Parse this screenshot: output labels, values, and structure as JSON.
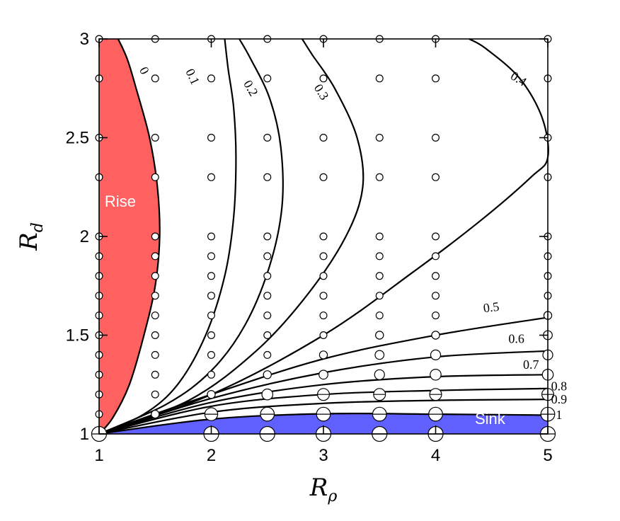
{
  "chart_data": {
    "type": "contour",
    "title": "",
    "xlabel": "R",
    "xlabel_sub": "ρ",
    "ylabel": "R",
    "ylabel_sub": "d",
    "xlim": [
      1,
      5
    ],
    "ylim": [
      1,
      3
    ],
    "xticks": [
      "1",
      "2",
      "3",
      "4",
      "5"
    ],
    "yticks": [
      "1",
      "1.5",
      "2",
      "2.5",
      "3"
    ],
    "grid": false,
    "legend": "none",
    "regions": [
      {
        "name": "Rise",
        "color": "#ff6060",
        "boundary": [
          [
            1.0,
            1.0
          ],
          [
            1.12,
            1.08
          ],
          [
            1.27,
            1.25
          ],
          [
            1.4,
            1.5
          ],
          [
            1.5,
            1.75
          ],
          [
            1.54,
            2.0
          ],
          [
            1.52,
            2.25
          ],
          [
            1.45,
            2.5
          ],
          [
            1.33,
            2.75
          ],
          [
            1.25,
            2.9
          ],
          [
            1.17,
            3.0
          ]
        ]
      },
      {
        "name": "Sink",
        "color": "#6060ff",
        "boundary": [
          [
            1.0,
            1.0
          ],
          [
            1.5,
            1.045
          ],
          [
            2.0,
            1.075
          ],
          [
            2.5,
            1.093
          ],
          [
            3.0,
            1.102
          ],
          [
            3.5,
            1.105
          ],
          [
            4.0,
            1.1
          ],
          [
            4.5,
            1.097
          ],
          [
            5.0,
            1.095
          ]
        ]
      }
    ],
    "contours": [
      {
        "level": "0",
        "points": [
          [
            1.0,
            1.0
          ],
          [
            1.12,
            1.08
          ],
          [
            1.27,
            1.25
          ],
          [
            1.4,
            1.5
          ],
          [
            1.5,
            1.75
          ],
          [
            1.54,
            2.0
          ],
          [
            1.52,
            2.25
          ],
          [
            1.45,
            2.5
          ],
          [
            1.33,
            2.75
          ],
          [
            1.25,
            2.9
          ],
          [
            1.17,
            3.0
          ]
        ]
      },
      {
        "level": "0.1",
        "points": [
          [
            1.0,
            1.0
          ],
          [
            1.4,
            1.1
          ],
          [
            1.7,
            1.25
          ],
          [
            1.95,
            1.5
          ],
          [
            2.12,
            1.8
          ],
          [
            2.2,
            2.1
          ],
          [
            2.22,
            2.4
          ],
          [
            2.2,
            2.65
          ],
          [
            2.15,
            2.85
          ],
          [
            2.12,
            3.0
          ]
        ]
      },
      {
        "level": "0.2",
        "points": [
          [
            1.0,
            1.0
          ],
          [
            1.6,
            1.15
          ],
          [
            2.0,
            1.32
          ],
          [
            2.3,
            1.55
          ],
          [
            2.52,
            1.85
          ],
          [
            2.63,
            2.15
          ],
          [
            2.62,
            2.45
          ],
          [
            2.52,
            2.7
          ],
          [
            2.35,
            2.9
          ],
          [
            2.25,
            3.0
          ]
        ]
      },
      {
        "level": "0.3",
        "points": [
          [
            1.0,
            1.0
          ],
          [
            1.8,
            1.17
          ],
          [
            2.4,
            1.42
          ],
          [
            2.85,
            1.7
          ],
          [
            3.2,
            2.0
          ],
          [
            3.35,
            2.25
          ],
          [
            3.3,
            2.5
          ],
          [
            3.1,
            2.75
          ],
          [
            2.9,
            2.92
          ],
          [
            2.81,
            3.0
          ]
        ]
      },
      {
        "level": "0.4",
        "points": [
          [
            1.0,
            1.0
          ],
          [
            2.0,
            1.2
          ],
          [
            3.0,
            1.5
          ],
          [
            3.8,
            1.82
          ],
          [
            4.4,
            2.08
          ],
          [
            4.85,
            2.3
          ],
          [
            5.0,
            2.4
          ],
          [
            4.95,
            2.6
          ],
          [
            4.75,
            2.8
          ],
          [
            4.45,
            2.95
          ],
          [
            4.3,
            3.0
          ]
        ]
      },
      {
        "level": "0.5",
        "points": [
          [
            1.0,
            1.0
          ],
          [
            2.0,
            1.2
          ],
          [
            3.0,
            1.38
          ],
          [
            4.0,
            1.5
          ],
          [
            5.0,
            1.59
          ]
        ]
      },
      {
        "level": "0.6",
        "points": [
          [
            1.0,
            1.0
          ],
          [
            2.0,
            1.18
          ],
          [
            3.0,
            1.31
          ],
          [
            4.0,
            1.39
          ],
          [
            5.0,
            1.42
          ]
        ]
      },
      {
        "level": "0.7",
        "points": [
          [
            1.0,
            1.0
          ],
          [
            2.0,
            1.16
          ],
          [
            3.0,
            1.25
          ],
          [
            4.0,
            1.29
          ],
          [
            5.0,
            1.3
          ]
        ]
      },
      {
        "level": "0.8",
        "points": [
          [
            1.0,
            1.0
          ],
          [
            2.0,
            1.14
          ],
          [
            3.0,
            1.2
          ],
          [
            4.0,
            1.22
          ],
          [
            5.0,
            1.23
          ]
        ]
      },
      {
        "level": "0.9",
        "points": [
          [
            1.0,
            1.0
          ],
          [
            2.0,
            1.11
          ],
          [
            3.0,
            1.155
          ],
          [
            4.0,
            1.17
          ],
          [
            5.0,
            1.175
          ]
        ]
      },
      {
        "level": "1",
        "points": [
          [
            1.0,
            1.0
          ],
          [
            2.0,
            1.075
          ],
          [
            3.0,
            1.102
          ],
          [
            4.0,
            1.1
          ],
          [
            5.0,
            1.095
          ]
        ]
      }
    ],
    "contour_labels": [
      {
        "text": "0",
        "x": 1.37,
        "y": 2.83,
        "rotation": 63
      },
      {
        "text": "0.1",
        "x": 1.8,
        "y": 2.8,
        "rotation": 65
      },
      {
        "text": "0.2",
        "x": 2.32,
        "y": 2.74,
        "rotation": 60
      },
      {
        "text": "0.3",
        "x": 2.95,
        "y": 2.72,
        "rotation": 58
      },
      {
        "text": "0.4",
        "x": 4.72,
        "y": 2.78,
        "rotation": 32
      },
      {
        "text": "0.5",
        "x": 4.5,
        "y": 1.62,
        "rotation": -7
      },
      {
        "text": "0.6",
        "x": 4.72,
        "y": 1.46,
        "rotation": 0
      },
      {
        "text": "0.7",
        "x": 4.85,
        "y": 1.33,
        "rotation": 0
      },
      {
        "text": "0.8",
        "x": 5.1,
        "y": 1.22,
        "rotation": 0
      },
      {
        "text": "0.9",
        "x": 5.1,
        "y": 1.155,
        "rotation": 0
      },
      {
        "text": "1",
        "x": 5.1,
        "y": 1.075,
        "rotation": 0
      }
    ],
    "region_labels": [
      {
        "text": "Rise",
        "x": 1.05,
        "y": 2.15
      },
      {
        "text": "Sink",
        "x": 4.35,
        "y": 1.05
      }
    ],
    "points": [
      {
        "x": 1,
        "y": 3,
        "s": 0.2
      },
      {
        "x": 1,
        "y": 2.8,
        "s": 0.2
      },
      {
        "x": 1,
        "y": 2.5,
        "s": 0.2
      },
      {
        "x": 1,
        "y": 2.3,
        "s": 0.2
      },
      {
        "x": 1,
        "y": 2.0,
        "s": 0.2
      },
      {
        "x": 1,
        "y": 1.9,
        "s": 0.2
      },
      {
        "x": 1,
        "y": 1.8,
        "s": 0.2
      },
      {
        "x": 1,
        "y": 1.7,
        "s": 0.2
      },
      {
        "x": 1,
        "y": 1.6,
        "s": 0.2
      },
      {
        "x": 1,
        "y": 1.5,
        "s": 0.2
      },
      {
        "x": 1,
        "y": 1.4,
        "s": 0.2
      },
      {
        "x": 1,
        "y": 1.3,
        "s": 0.2
      },
      {
        "x": 1,
        "y": 1.2,
        "s": 0.2
      },
      {
        "x": 1,
        "y": 1.1,
        "s": 0.2
      },
      {
        "x": 1,
        "y": 1.0,
        "s": 1.0
      },
      {
        "x": 1.5,
        "y": 3,
        "s": 0.2
      },
      {
        "x": 1.5,
        "y": 2.8,
        "s": 0.2
      },
      {
        "x": 1.5,
        "y": 2.5,
        "s": 0.2
      },
      {
        "x": 1.5,
        "y": 2.3,
        "s": 0.2
      },
      {
        "x": 1.5,
        "y": 2.0,
        "s": 0.2
      },
      {
        "x": 1.5,
        "y": 1.9,
        "s": 0.2
      },
      {
        "x": 1.5,
        "y": 1.8,
        "s": 0.2
      },
      {
        "x": 1.5,
        "y": 1.7,
        "s": 0.2
      },
      {
        "x": 1.5,
        "y": 1.6,
        "s": 0.2
      },
      {
        "x": 1.5,
        "y": 1.5,
        "s": 0.2
      },
      {
        "x": 1.5,
        "y": 1.4,
        "s": 0.2
      },
      {
        "x": 1.5,
        "y": 1.3,
        "s": 0.2
      },
      {
        "x": 1.5,
        "y": 1.2,
        "s": 0.2
      },
      {
        "x": 1.5,
        "y": 1.1,
        "s": 0.3
      },
      {
        "x": 2,
        "y": 3,
        "s": 0.2
      },
      {
        "x": 2,
        "y": 2.8,
        "s": 0.2
      },
      {
        "x": 2,
        "y": 2.5,
        "s": 0.2
      },
      {
        "x": 2,
        "y": 2.3,
        "s": 0.2
      },
      {
        "x": 2,
        "y": 2.0,
        "s": 0.2
      },
      {
        "x": 2,
        "y": 1.9,
        "s": 0.2
      },
      {
        "x": 2,
        "y": 1.8,
        "s": 0.2
      },
      {
        "x": 2,
        "y": 1.7,
        "s": 0.2
      },
      {
        "x": 2,
        "y": 1.6,
        "s": 0.2
      },
      {
        "x": 2,
        "y": 1.5,
        "s": 0.2
      },
      {
        "x": 2,
        "y": 1.4,
        "s": 0.2
      },
      {
        "x": 2,
        "y": 1.3,
        "s": 0.2
      },
      {
        "x": 2,
        "y": 1.2,
        "s": 0.3
      },
      {
        "x": 2,
        "y": 1.1,
        "s": 0.8
      },
      {
        "x": 2,
        "y": 1.0,
        "s": 1.0
      },
      {
        "x": 2.5,
        "y": 3,
        "s": 0.2
      },
      {
        "x": 2.5,
        "y": 2.8,
        "s": 0.2
      },
      {
        "x": 2.5,
        "y": 2.5,
        "s": 0.2
      },
      {
        "x": 2.5,
        "y": 2.3,
        "s": 0.2
      },
      {
        "x": 2.5,
        "y": 2.0,
        "s": 0.2
      },
      {
        "x": 2.5,
        "y": 1.9,
        "s": 0.2
      },
      {
        "x": 2.5,
        "y": 1.8,
        "s": 0.2
      },
      {
        "x": 2.5,
        "y": 1.7,
        "s": 0.2
      },
      {
        "x": 2.5,
        "y": 1.6,
        "s": 0.2
      },
      {
        "x": 2.5,
        "y": 1.5,
        "s": 0.2
      },
      {
        "x": 2.5,
        "y": 1.4,
        "s": 0.2
      },
      {
        "x": 2.5,
        "y": 1.3,
        "s": 0.3
      },
      {
        "x": 2.5,
        "y": 1.2,
        "s": 0.6
      },
      {
        "x": 2.5,
        "y": 1.1,
        "s": 0.9
      },
      {
        "x": 2.5,
        "y": 1.0,
        "s": 1.0
      },
      {
        "x": 3,
        "y": 3,
        "s": 0.2
      },
      {
        "x": 3,
        "y": 2.8,
        "s": 0.2
      },
      {
        "x": 3,
        "y": 2.5,
        "s": 0.2
      },
      {
        "x": 3,
        "y": 2.3,
        "s": 0.2
      },
      {
        "x": 3,
        "y": 2.0,
        "s": 0.2
      },
      {
        "x": 3,
        "y": 1.9,
        "s": 0.2
      },
      {
        "x": 3,
        "y": 1.8,
        "s": 0.2
      },
      {
        "x": 3,
        "y": 1.7,
        "s": 0.2
      },
      {
        "x": 3,
        "y": 1.6,
        "s": 0.2
      },
      {
        "x": 3,
        "y": 1.5,
        "s": 0.2
      },
      {
        "x": 3,
        "y": 1.4,
        "s": 0.3
      },
      {
        "x": 3,
        "y": 1.3,
        "s": 0.4
      },
      {
        "x": 3,
        "y": 1.2,
        "s": 0.7
      },
      {
        "x": 3,
        "y": 1.1,
        "s": 0.9
      },
      {
        "x": 3,
        "y": 1.0,
        "s": 1.0
      },
      {
        "x": 3.5,
        "y": 3,
        "s": 0.2
      },
      {
        "x": 3.5,
        "y": 2.8,
        "s": 0.2
      },
      {
        "x": 3.5,
        "y": 2.5,
        "s": 0.2
      },
      {
        "x": 3.5,
        "y": 2.3,
        "s": 0.2
      },
      {
        "x": 3.5,
        "y": 2.0,
        "s": 0.2
      },
      {
        "x": 3.5,
        "y": 1.9,
        "s": 0.2
      },
      {
        "x": 3.5,
        "y": 1.8,
        "s": 0.2
      },
      {
        "x": 3.5,
        "y": 1.7,
        "s": 0.2
      },
      {
        "x": 3.5,
        "y": 1.6,
        "s": 0.2
      },
      {
        "x": 3.5,
        "y": 1.5,
        "s": 0.3
      },
      {
        "x": 3.5,
        "y": 1.4,
        "s": 0.4
      },
      {
        "x": 3.5,
        "y": 1.3,
        "s": 0.5
      },
      {
        "x": 3.5,
        "y": 1.2,
        "s": 0.7
      },
      {
        "x": 3.5,
        "y": 1.1,
        "s": 0.9
      },
      {
        "x": 3.5,
        "y": 1.0,
        "s": 1.0
      },
      {
        "x": 4,
        "y": 3,
        "s": 0.2
      },
      {
        "x": 4,
        "y": 2.8,
        "s": 0.2
      },
      {
        "x": 4,
        "y": 2.5,
        "s": 0.2
      },
      {
        "x": 4,
        "y": 2.3,
        "s": 0.2
      },
      {
        "x": 4,
        "y": 2.0,
        "s": 0.2
      },
      {
        "x": 4,
        "y": 1.9,
        "s": 0.2
      },
      {
        "x": 4,
        "y": 1.8,
        "s": 0.2
      },
      {
        "x": 4,
        "y": 1.7,
        "s": 0.2
      },
      {
        "x": 4,
        "y": 1.6,
        "s": 0.2
      },
      {
        "x": 4,
        "y": 1.5,
        "s": 0.3
      },
      {
        "x": 4,
        "y": 1.4,
        "s": 0.5
      },
      {
        "x": 4,
        "y": 1.3,
        "s": 0.6
      },
      {
        "x": 4,
        "y": 1.2,
        "s": 0.7
      },
      {
        "x": 4,
        "y": 1.1,
        "s": 0.9
      },
      {
        "x": 4,
        "y": 1.0,
        "s": 1.0
      },
      {
        "x": 5,
        "y": 3,
        "s": 0.2
      },
      {
        "x": 5,
        "y": 2.8,
        "s": 0.2
      },
      {
        "x": 5,
        "y": 2.5,
        "s": 0.2
      },
      {
        "x": 5,
        "y": 2.3,
        "s": 0.2
      },
      {
        "x": 5,
        "y": 2.0,
        "s": 0.2
      },
      {
        "x": 5,
        "y": 1.9,
        "s": 0.2
      },
      {
        "x": 5,
        "y": 1.8,
        "s": 0.2
      },
      {
        "x": 5,
        "y": 1.7,
        "s": 0.2
      },
      {
        "x": 5,
        "y": 1.6,
        "s": 0.3
      },
      {
        "x": 5,
        "y": 1.5,
        "s": 0.4
      },
      {
        "x": 5,
        "y": 1.4,
        "s": 0.5
      },
      {
        "x": 5,
        "y": 1.3,
        "s": 0.6
      },
      {
        "x": 5,
        "y": 1.2,
        "s": 0.7
      },
      {
        "x": 5,
        "y": 1.1,
        "s": 0.9
      },
      {
        "x": 5,
        "y": 1.0,
        "s": 1.0
      }
    ]
  }
}
